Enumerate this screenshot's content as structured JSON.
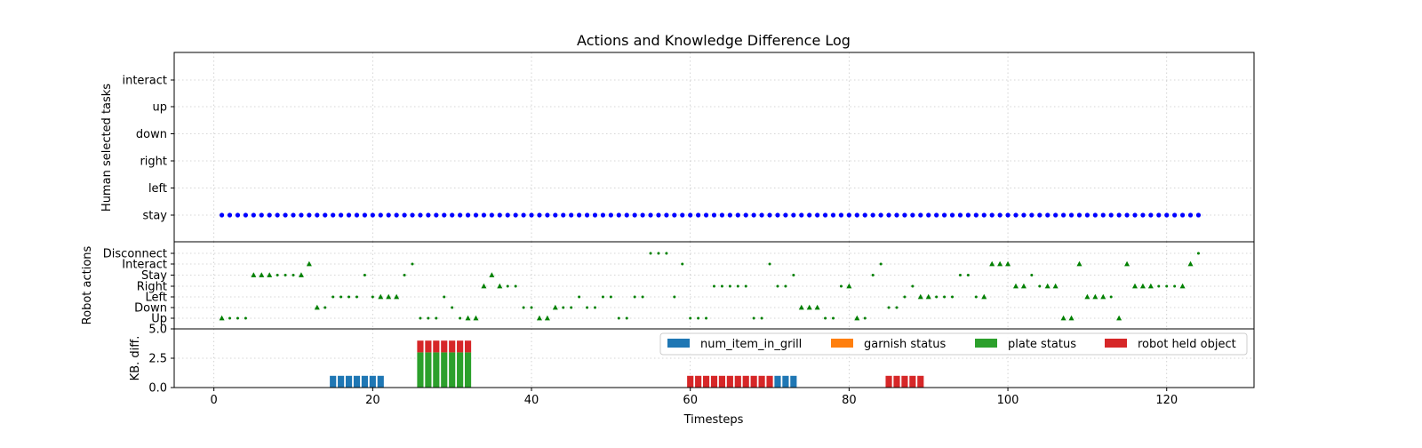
{
  "chart_data": [
    {
      "type": "scatter",
      "title": "Actions and Knowledge Difference Log",
      "ylabel": "Human selected tasks",
      "xlim": [
        -5,
        131
      ],
      "grid": true,
      "categories": [
        "stay",
        "left",
        "right",
        "down",
        "up",
        "interact"
      ],
      "series": [
        {
          "color": "#0000ff",
          "marker": "circle",
          "x": [
            1,
            2,
            3,
            4,
            5,
            6,
            7,
            8,
            9,
            10,
            11,
            12,
            13,
            14,
            15,
            16,
            17,
            18,
            19,
            20,
            21,
            22,
            23,
            24,
            25,
            26,
            27,
            28,
            29,
            30,
            31,
            32,
            33,
            34,
            35,
            36,
            37,
            38,
            39,
            40,
            41,
            42,
            43,
            44,
            45,
            46,
            47,
            48,
            49,
            50,
            51,
            52,
            53,
            54,
            55,
            56,
            57,
            58,
            59,
            60,
            61,
            62,
            63,
            64,
            65,
            66,
            67,
            68,
            69,
            70,
            71,
            72,
            73,
            74,
            75,
            76,
            77,
            78,
            79,
            80,
            81,
            82,
            83,
            84,
            85,
            86,
            87,
            88,
            89,
            90,
            91,
            92,
            93,
            94,
            95,
            96,
            97,
            98,
            99,
            100,
            101,
            102,
            103,
            104,
            105,
            106,
            107,
            108,
            109,
            110,
            111,
            112,
            113,
            114,
            115,
            116,
            117,
            118,
            119,
            120,
            121,
            122,
            123,
            124
          ],
          "y": [
            "stay",
            "stay",
            "stay",
            "stay",
            "stay",
            "stay",
            "stay",
            "stay",
            "stay",
            "stay",
            "stay",
            "stay",
            "stay",
            "stay",
            "stay",
            "stay",
            "stay",
            "stay",
            "stay",
            "stay",
            "stay",
            "stay",
            "stay",
            "stay",
            "stay",
            "stay",
            "stay",
            "stay",
            "stay",
            "stay",
            "stay",
            "stay",
            "stay",
            "stay",
            "stay",
            "stay",
            "stay",
            "stay",
            "stay",
            "stay",
            "stay",
            "stay",
            "stay",
            "stay",
            "stay",
            "stay",
            "stay",
            "stay",
            "stay",
            "stay",
            "stay",
            "stay",
            "stay",
            "stay",
            "stay",
            "stay",
            "stay",
            "stay",
            "stay",
            "stay",
            "stay",
            "stay",
            "stay",
            "stay",
            "stay",
            "stay",
            "stay",
            "stay",
            "stay",
            "stay",
            "stay",
            "stay",
            "stay",
            "stay",
            "stay",
            "stay",
            "stay",
            "stay",
            "stay",
            "stay",
            "stay",
            "stay",
            "stay",
            "stay",
            "stay",
            "stay",
            "stay",
            "stay",
            "stay",
            "stay",
            "stay",
            "stay",
            "stay",
            "stay",
            "stay",
            "stay",
            "stay",
            "stay",
            "stay",
            "stay",
            "stay",
            "stay",
            "stay",
            "stay",
            "stay",
            "stay",
            "stay",
            "stay",
            "stay",
            "stay",
            "stay",
            "stay",
            "stay",
            "stay",
            "stay",
            "stay",
            "stay",
            "stay",
            "stay",
            "stay",
            "stay",
            "stay",
            "stay",
            "stay"
          ]
        }
      ]
    },
    {
      "type": "scatter",
      "ylabel": "Robot actions",
      "xlim": [
        -5,
        131
      ],
      "grid": true,
      "categories": [
        "Up",
        "Down",
        "Left",
        "Right",
        "Stay",
        "Interact",
        "Disconnect"
      ],
      "points": [
        [
          1,
          "Up",
          "tri"
        ],
        [
          2,
          "Up",
          "dot"
        ],
        [
          3,
          "Up",
          "dot"
        ],
        [
          4,
          "Up",
          "dot"
        ],
        [
          5,
          "Stay",
          "tri"
        ],
        [
          6,
          "Stay",
          "tri"
        ],
        [
          7,
          "Stay",
          "tri"
        ],
        [
          8,
          "Stay",
          "dot"
        ],
        [
          9,
          "Stay",
          "dot"
        ],
        [
          10,
          "Stay",
          "dot"
        ],
        [
          11,
          "Stay",
          "tri"
        ],
        [
          12,
          "Interact",
          "tri"
        ],
        [
          13,
          "Down",
          "tri"
        ],
        [
          14,
          "Down",
          "dot"
        ],
        [
          15,
          "Left",
          "dot"
        ],
        [
          16,
          "Left",
          "dot"
        ],
        [
          17,
          "Left",
          "dot"
        ],
        [
          18,
          "Left",
          "dot"
        ],
        [
          19,
          "Stay",
          "dot"
        ],
        [
          20,
          "Left",
          "dot"
        ],
        [
          21,
          "Left",
          "tri"
        ],
        [
          22,
          "Left",
          "tri"
        ],
        [
          23,
          "Left",
          "tri"
        ],
        [
          24,
          "Stay",
          "dot"
        ],
        [
          25,
          "Interact",
          "dot"
        ],
        [
          26,
          "Up",
          "dot"
        ],
        [
          27,
          "Up",
          "dot"
        ],
        [
          28,
          "Up",
          "dot"
        ],
        [
          29,
          "Left",
          "dot"
        ],
        [
          30,
          "Down",
          "dot"
        ],
        [
          31,
          "Up",
          "dot"
        ],
        [
          32,
          "Up",
          "tri"
        ],
        [
          33,
          "Up",
          "tri"
        ],
        [
          34,
          "Right",
          "tri"
        ],
        [
          35,
          "Stay",
          "tri"
        ],
        [
          36,
          "Right",
          "tri"
        ],
        [
          37,
          "Right",
          "dot"
        ],
        [
          38,
          "Right",
          "dot"
        ],
        [
          39,
          "Down",
          "dot"
        ],
        [
          40,
          "Down",
          "dot"
        ],
        [
          41,
          "Up",
          "tri"
        ],
        [
          42,
          "Up",
          "tri"
        ],
        [
          43,
          "Down",
          "tri"
        ],
        [
          44,
          "Down",
          "dot"
        ],
        [
          45,
          "Down",
          "dot"
        ],
        [
          46,
          "Left",
          "dot"
        ],
        [
          47,
          "Down",
          "dot"
        ],
        [
          48,
          "Down",
          "dot"
        ],
        [
          49,
          "Left",
          "dot"
        ],
        [
          50,
          "Left",
          "dot"
        ],
        [
          51,
          "Up",
          "dot"
        ],
        [
          52,
          "Up",
          "dot"
        ],
        [
          53,
          "Left",
          "dot"
        ],
        [
          54,
          "Left",
          "dot"
        ],
        [
          55,
          "Disconnect",
          "dot"
        ],
        [
          56,
          "Disconnect",
          "dot"
        ],
        [
          57,
          "Disconnect",
          "dot"
        ],
        [
          58,
          "Left",
          "dot"
        ],
        [
          59,
          "Interact",
          "dot"
        ],
        [
          60,
          "Up",
          "dot"
        ],
        [
          61,
          "Up",
          "dot"
        ],
        [
          62,
          "Up",
          "dot"
        ],
        [
          63,
          "Right",
          "dot"
        ],
        [
          64,
          "Right",
          "dot"
        ],
        [
          65,
          "Right",
          "dot"
        ],
        [
          66,
          "Right",
          "dot"
        ],
        [
          67,
          "Right",
          "dot"
        ],
        [
          68,
          "Up",
          "dot"
        ],
        [
          69,
          "Up",
          "dot"
        ],
        [
          70,
          "Interact",
          "dot"
        ],
        [
          71,
          "Right",
          "dot"
        ],
        [
          72,
          "Right",
          "dot"
        ],
        [
          73,
          "Stay",
          "dot"
        ],
        [
          74,
          "Down",
          "tri"
        ],
        [
          75,
          "Down",
          "tri"
        ],
        [
          76,
          "Down",
          "tri"
        ],
        [
          77,
          "Up",
          "dot"
        ],
        [
          78,
          "Up",
          "dot"
        ],
        [
          79,
          "Right",
          "dot"
        ],
        [
          80,
          "Right",
          "tri"
        ],
        [
          81,
          "Up",
          "tri"
        ],
        [
          82,
          "Up",
          "dot"
        ],
        [
          83,
          "Stay",
          "dot"
        ],
        [
          84,
          "Interact",
          "dot"
        ],
        [
          85,
          "Down",
          "dot"
        ],
        [
          86,
          "Down",
          "dot"
        ],
        [
          87,
          "Left",
          "dot"
        ],
        [
          88,
          "Right",
          "dot"
        ],
        [
          89,
          "Left",
          "tri"
        ],
        [
          90,
          "Left",
          "tri"
        ],
        [
          91,
          "Left",
          "dot"
        ],
        [
          92,
          "Left",
          "dot"
        ],
        [
          93,
          "Left",
          "dot"
        ],
        [
          94,
          "Stay",
          "dot"
        ],
        [
          95,
          "Stay",
          "dot"
        ],
        [
          96,
          "Left",
          "dot"
        ],
        [
          97,
          "Left",
          "tri"
        ],
        [
          98,
          "Interact",
          "tri"
        ],
        [
          99,
          "Interact",
          "tri"
        ],
        [
          100,
          "Interact",
          "tri"
        ],
        [
          101,
          "Right",
          "tri"
        ],
        [
          102,
          "Right",
          "tri"
        ],
        [
          103,
          "Stay",
          "dot"
        ],
        [
          104,
          "Right",
          "dot"
        ],
        [
          105,
          "Right",
          "tri"
        ],
        [
          106,
          "Right",
          "tri"
        ],
        [
          107,
          "Up",
          "tri"
        ],
        [
          108,
          "Up",
          "tri"
        ],
        [
          109,
          "Interact",
          "tri"
        ],
        [
          110,
          "Left",
          "tri"
        ],
        [
          111,
          "Left",
          "tri"
        ],
        [
          112,
          "Left",
          "tri"
        ],
        [
          113,
          "Left",
          "dot"
        ],
        [
          114,
          "Up",
          "tri"
        ],
        [
          115,
          "Interact",
          "tri"
        ],
        [
          116,
          "Right",
          "tri"
        ],
        [
          117,
          "Right",
          "tri"
        ],
        [
          118,
          "Right",
          "tri"
        ],
        [
          119,
          "Right",
          "dot"
        ],
        [
          120,
          "Right",
          "dot"
        ],
        [
          121,
          "Right",
          "dot"
        ],
        [
          122,
          "Right",
          "tri"
        ],
        [
          123,
          "Interact",
          "tri"
        ],
        [
          124,
          "Disconnect",
          "dot"
        ]
      ],
      "color": "#008000"
    },
    {
      "type": "bar",
      "stacked": true,
      "ylabel": "KB. diff.",
      "xlabel": "Timesteps",
      "xlim": [
        -5,
        131
      ],
      "ylim": [
        0,
        5
      ],
      "yticks": [
        "0.0",
        "2.5",
        "5.0"
      ],
      "xticks": [
        "0",
        "20",
        "40",
        "60",
        "80",
        "100",
        "120"
      ],
      "grid": true,
      "legend_position": "top-right",
      "series": [
        {
          "name": "num_item_in_grill",
          "color": "#1f77b4",
          "x": [
            15,
            16,
            17,
            18,
            19,
            20,
            21,
            71,
            72,
            73
          ],
          "values": [
            1,
            1,
            1,
            1,
            1,
            1,
            1,
            1,
            1,
            1
          ]
        },
        {
          "name": "garnish status",
          "color": "#ff7f0e",
          "x": [],
          "values": []
        },
        {
          "name": "plate status",
          "color": "#2ca02c",
          "x": [
            26,
            27,
            28,
            29,
            30,
            31,
            32
          ],
          "values": [
            3,
            3,
            3,
            3,
            3,
            3,
            3
          ]
        },
        {
          "name": "robot held object",
          "color": "#d62728",
          "x": [
            26,
            27,
            28,
            29,
            30,
            31,
            32,
            60,
            61,
            62,
            63,
            64,
            65,
            66,
            67,
            68,
            69,
            70,
            85,
            86,
            87,
            88,
            89
          ],
          "values": [
            1,
            1,
            1,
            1,
            1,
            1,
            1,
            1,
            1,
            1,
            1,
            1,
            1,
            1,
            1,
            1,
            1,
            1,
            1,
            1,
            1,
            1,
            1
          ]
        }
      ]
    }
  ]
}
